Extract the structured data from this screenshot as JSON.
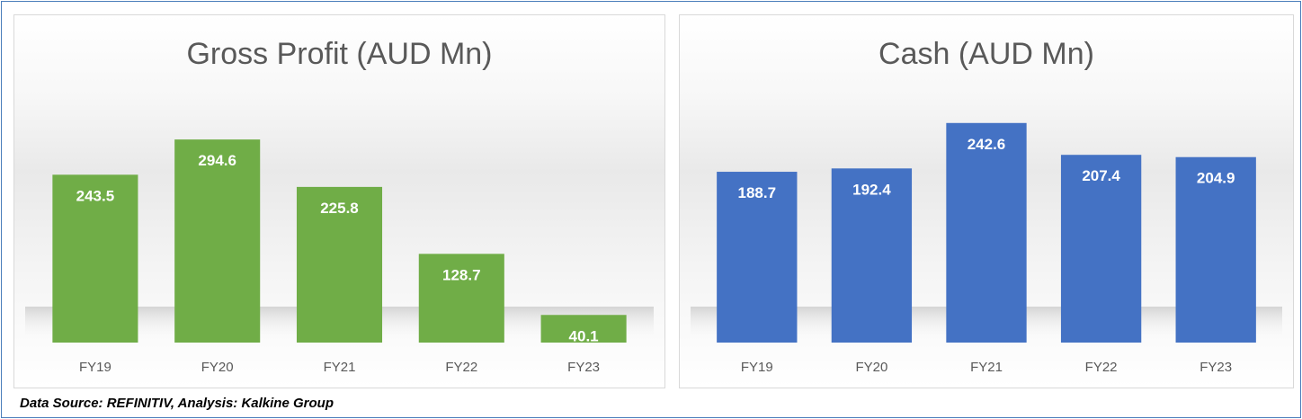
{
  "footer": {
    "source": "Data Source: REFINITIV, Analysis: Kalkine Group"
  },
  "chart_data": [
    {
      "type": "bar",
      "title": "Gross Profit (AUD Mn)",
      "categories": [
        "FY19",
        "FY20",
        "FY21",
        "FY22",
        "FY23"
      ],
      "values": [
        243.5,
        294.6,
        225.8,
        128.7,
        40.1
      ],
      "value_labels": [
        "243.5",
        "294.6",
        "225.8",
        "128.7",
        "40.1"
      ],
      "ylim": [
        0,
        300
      ],
      "grid": false,
      "legend": "none",
      "bar_color": "#70ad47"
    },
    {
      "type": "bar",
      "title": "Cash (AUD Mn)",
      "categories": [
        "FY19",
        "FY20",
        "FY21",
        "FY22",
        "FY23"
      ],
      "values": [
        188.7,
        192.4,
        242.6,
        207.4,
        204.9
      ],
      "value_labels": [
        "188.7",
        "192.4",
        "242.6",
        "207.4",
        "204.9"
      ],
      "ylim": [
        0,
        300
      ],
      "grid": false,
      "legend": "none",
      "bar_color": "#4472c4"
    }
  ]
}
